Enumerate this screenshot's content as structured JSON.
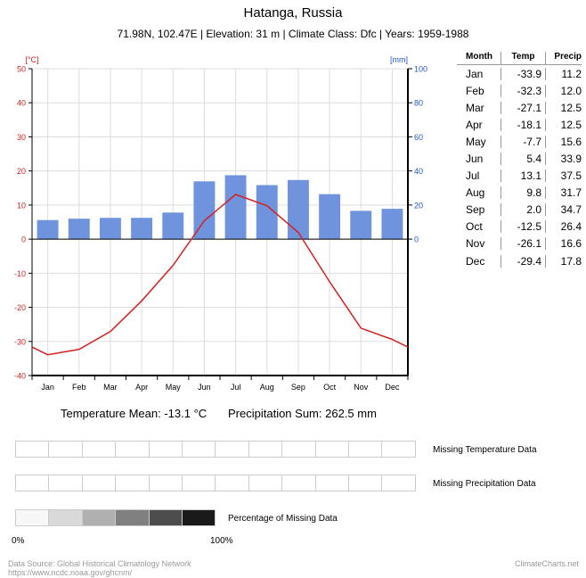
{
  "header": {
    "title": "Hatanga, Russia",
    "subtitle": "71.98N, 102.47E | Elevation: 31 m | Climate Class: Dfc | Years: 1959-1988"
  },
  "chart_data": {
    "type": "bar+line",
    "categories": [
      "Jan",
      "Feb",
      "Mar",
      "Apr",
      "May",
      "Jun",
      "Jul",
      "Aug",
      "Sep",
      "Oct",
      "Nov",
      "Dec"
    ],
    "series": [
      {
        "name": "Precip",
        "type": "bar",
        "axis": "right",
        "values": [
          11.2,
          12.0,
          12.5,
          12.5,
          15.6,
          33.9,
          37.5,
          31.7,
          34.7,
          26.4,
          16.6,
          17.8
        ]
      },
      {
        "name": "Temp",
        "type": "line",
        "axis": "left",
        "values": [
          -33.9,
          -32.3,
          -27.1,
          -18.1,
          -7.7,
          5.4,
          13.1,
          9.8,
          2.0,
          -12.5,
          -26.1,
          -29.4
        ]
      }
    ],
    "y_left": {
      "unit": "[°C]",
      "range": [
        -40,
        50
      ],
      "ticks": [
        "-40",
        "-30",
        "-20",
        "-10",
        "0",
        "10",
        "20",
        "30",
        "40",
        "50"
      ]
    },
    "y_right": {
      "unit": "[mm]",
      "range": [
        0,
        100
      ],
      "ticks": [
        "0",
        "20",
        "40",
        "60",
        "80",
        "100"
      ]
    },
    "grid": true,
    "colors": {
      "temp": "#d62020",
      "precip": "#6f93dc",
      "temp_axis": "#d62020",
      "precip_axis": "#2255cc"
    }
  },
  "table": {
    "headers": {
      "month": "Month",
      "temp": "Temp",
      "precip": "Precip"
    },
    "rows": [
      {
        "month": "Jan",
        "temp": "-33.9",
        "precip": "11.2"
      },
      {
        "month": "Feb",
        "temp": "-32.3",
        "precip": "12.0"
      },
      {
        "month": "Mar",
        "temp": "-27.1",
        "precip": "12.5"
      },
      {
        "month": "Apr",
        "temp": "-18.1",
        "precip": "12.5"
      },
      {
        "month": "May",
        "temp": "-7.7",
        "precip": "15.6"
      },
      {
        "month": "Jun",
        "temp": "5.4",
        "precip": "33.9"
      },
      {
        "month": "Jul",
        "temp": "13.1",
        "precip": "37.5"
      },
      {
        "month": "Aug",
        "temp": "9.8",
        "precip": "31.7"
      },
      {
        "month": "Sep",
        "temp": "2.0",
        "precip": "34.7"
      },
      {
        "month": "Oct",
        "temp": "-12.5",
        "precip": "26.4"
      },
      {
        "month": "Nov",
        "temp": "-26.1",
        "precip": "16.6"
      },
      {
        "month": "Dec",
        "temp": "-29.4",
        "precip": "17.8"
      }
    ]
  },
  "summary": {
    "temperature_mean": "Temperature Mean: -13.1 °C",
    "precipitation_sum": "Precipitation Sum: 262.5 mm"
  },
  "missing_data": {
    "temperature_label": "Missing Temperature Data",
    "precipitation_label": "Missing Precipitation Data",
    "legend_label": "Percentage of Missing Data",
    "legend_colors": [
      "#f7f7f7",
      "#d9d9d9",
      "#b0b0b0",
      "#808080",
      "#4d4d4d",
      "#1a1a1a"
    ],
    "pct_min": "0%",
    "pct_max": "100%"
  },
  "footer": {
    "source_line1": "Data Source: Global Historical Climatology Network",
    "source_line2": "https://www.ncdc.noaa.gov/ghcnm/",
    "brand": "ClimateCharts.net"
  }
}
